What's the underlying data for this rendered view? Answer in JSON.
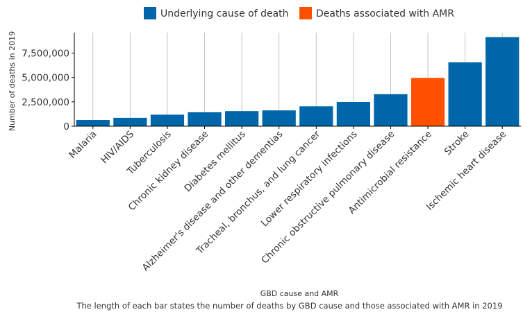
{
  "chart_data": {
    "type": "bar",
    "xlabel": "GBD cause and AMR",
    "ylabel": "Number of deaths in 2019",
    "caption": "The length of each bar states the number of deaths by GBD cause and those associated with AMR in 2019",
    "ylim": [
      0,
      9600000
    ],
    "y_ticks": [
      0,
      2500000,
      5000000,
      7500000
    ],
    "y_tick_labels": [
      "0",
      "2,500,000",
      "5,000,000",
      "7,500,000"
    ],
    "grid": "vertical",
    "legend_position": "top",
    "legend": [
      {
        "name": "Underlying cause of death",
        "color": "#0066AA"
      },
      {
        "name": "Deaths associated with AMR",
        "color": "#FF5000"
      }
    ],
    "categories": [
      "Malaria",
      "HIV/AIDS",
      "Tuberculosis",
      "Chronic kidney disease",
      "Diabetes mellitus",
      "Alzheimer's disease and other dementias",
      "Tracheal, bronchus, and lung cancer",
      "Lower respiratory infections",
      "Chronic obstructive pulmonary disease",
      "Antimicrobial resistance",
      "Stroke",
      "Ischemic heart disease"
    ],
    "values": [
      640000,
      860000,
      1180000,
      1430000,
      1550000,
      1620000,
      2040000,
      2490000,
      3280000,
      4950000,
      6550000,
      9140000
    ],
    "series_of_bar": [
      "Underlying cause of death",
      "Underlying cause of death",
      "Underlying cause of death",
      "Underlying cause of death",
      "Underlying cause of death",
      "Underlying cause of death",
      "Underlying cause of death",
      "Underlying cause of death",
      "Underlying cause of death",
      "Deaths associated with AMR",
      "Underlying cause of death",
      "Underlying cause of death"
    ]
  }
}
